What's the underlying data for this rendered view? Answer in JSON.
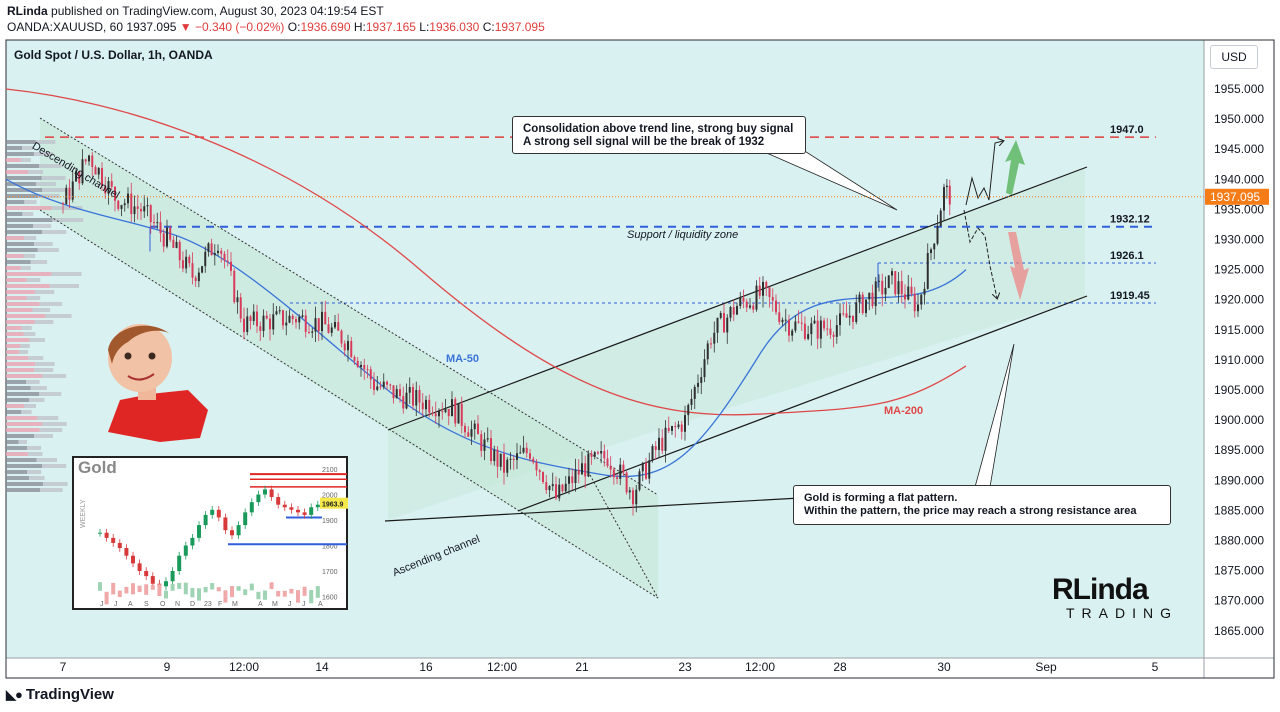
{
  "header": {
    "author": "RLinda",
    "published_text": "published on TradingView.com, August 30, 2023 04:19:54 EST",
    "symbol": "OANDA:XAUUSD, 60",
    "last": "1937.095",
    "change": "−0.340 (−0.02%)",
    "open_label": "O:",
    "open": "1936.690",
    "high_label": "H:",
    "high": "1937.165",
    "low_label": "L:",
    "low": "1936.030",
    "close_label": "C:",
    "close": "1937.095"
  },
  "chart_title": "Gold Spot / U.S. Dollar, 1h, OANDA",
  "currency_button": "USD",
  "brand": "TradingView",
  "colors": {
    "background": "#d9f1f1",
    "up": "#2f2f2f",
    "down": "#d83a5a",
    "resistance": "#e03c3c",
    "support": "#2f5fdb",
    "ma50": "#3a74d8",
    "ma200": "#e04848",
    "price_tag": "#f57c17"
  },
  "chart_data": {
    "type": "line",
    "title": "Gold Spot / U.S. Dollar, 1h, OANDA",
    "y_ticks": [
      "1955.000",
      "1950.000",
      "1945.000",
      "1940.000",
      "1935.000",
      "1930.000",
      "1925.000",
      "1920.000",
      "1915.000",
      "1910.000",
      "1905.000",
      "1900.000",
      "1895.000",
      "1890.000",
      "1885.000",
      "1880.000",
      "1875.000",
      "1870.000",
      "1865.000"
    ],
    "x_ticks": [
      "7",
      "9",
      "12:00",
      "14",
      "16",
      "12:00",
      "21",
      "23",
      "12:00",
      "28",
      "30",
      "Sep",
      "5"
    ],
    "ylim": [
      1861.5,
      1959
    ],
    "last_price_label": "1937.095",
    "levels": [
      {
        "value": 1947.0,
        "label": "1947.0",
        "style": "dashed-red"
      },
      {
        "value": 1932.12,
        "label": "1932.12",
        "style": "dashed-blue"
      },
      {
        "value": 1926.1,
        "label": "1926.1",
        "style": "dashed-blue"
      },
      {
        "value": 1919.45,
        "label": "1919.45",
        "style": "dashed-blue"
      }
    ],
    "series": [
      {
        "name": "MA-50"
      },
      {
        "name": "MA-200"
      }
    ],
    "price_path": [
      [
        "Aug 7 00:00",
        1936
      ],
      [
        "Aug 7 12:00",
        1944
      ],
      [
        "Aug 8 00:00",
        1937
      ],
      [
        "Aug 8 12:00",
        1935
      ],
      [
        "Aug 9 00:00",
        1930
      ],
      [
        "Aug 9 12:00",
        1924
      ],
      [
        "Aug 10 00:00",
        1930
      ],
      [
        "Aug 10 12:00",
        1916
      ],
      [
        "Aug 11 12:00",
        1917
      ],
      [
        "Aug 14 00:00",
        1916
      ],
      [
        "Aug 14 12:00",
        1913
      ],
      [
        "Aug 15 00:00",
        1906
      ],
      [
        "Aug 15 12:00",
        1904
      ],
      [
        "Aug 16 12:00",
        1902
      ],
      [
        "Aug 17 00:00",
        1897
      ],
      [
        "Aug 17 12:00",
        1892
      ],
      [
        "Aug 18 00:00",
        1895
      ],
      [
        "Aug 18 12:00",
        1887
      ],
      [
        "Aug 21 00:00",
        1892
      ],
      [
        "Aug 21 12:00",
        1894
      ],
      [
        "Aug 22 00:00",
        1888
      ],
      [
        "Aug 22 12:00",
        1896
      ],
      [
        "Aug 23 00:00",
        1900
      ],
      [
        "Aug 23 12:00",
        1914
      ],
      [
        "Aug 24 00:00",
        1919
      ],
      [
        "Aug 24 12:00",
        1921
      ],
      [
        "Aug 25 00:00",
        1916
      ],
      [
        "Aug 25 12:00",
        1915
      ],
      [
        "Aug 28 00:00",
        1916
      ],
      [
        "Aug 28 12:00",
        1920
      ],
      [
        "Aug 29 00:00",
        1923
      ],
      [
        "Aug 29 12:00",
        1919
      ],
      [
        "Aug 30 00:00",
        1938
      ],
      [
        "Aug 30 04:00",
        1937.095
      ]
    ],
    "ma200_path": [
      [
        "Aug 7",
        1952
      ],
      [
        "Aug 14",
        1937
      ],
      [
        "Aug 21",
        1912
      ],
      [
        "Aug 23",
        1902
      ],
      [
        "Aug 28",
        1902
      ],
      [
        "Aug 30",
        1905
      ]
    ],
    "ma50_path": [
      [
        "Aug 7",
        1940
      ],
      [
        "Aug 9",
        1932
      ],
      [
        "Aug 14",
        1912
      ],
      [
        "Aug 18",
        1898
      ],
      [
        "Aug 21",
        1890
      ],
      [
        "Aug 23",
        1892
      ],
      [
        "Aug 25",
        1905
      ],
      [
        "Aug 28",
        1915
      ],
      [
        "Aug 30",
        1925
      ]
    ]
  },
  "annotations": {
    "descending_channel": "Descending channel",
    "ascending_channel": "Ascending channel",
    "support_zone": "Support / liquidity zone",
    "ma50": "MA-50",
    "ma200": "MA-200",
    "callout_top_line1": "Consolidation above trend line, strong buy signal",
    "callout_top_line2": "A strong sell signal will be the break of 1932",
    "callout_bottom_line1": "Gold is forming a flat pattern.",
    "callout_bottom_line2": "Within the pattern, the price may reach a strong resistance area"
  },
  "inset": {
    "title": "Gold",
    "side_label": "WEEKLY",
    "price_tag": "1963.9",
    "y_ticks": [
      "2100",
      "2000",
      "1900",
      "1800",
      "1700",
      "1600"
    ],
    "x_ticks": [
      "J",
      "J",
      "A",
      "S",
      "O",
      "N",
      "D",
      "23",
      "F",
      "M",
      "A",
      "M",
      "J",
      "J",
      "A"
    ]
  },
  "logo": {
    "line1": "RLinda",
    "line2": "TRADING"
  }
}
